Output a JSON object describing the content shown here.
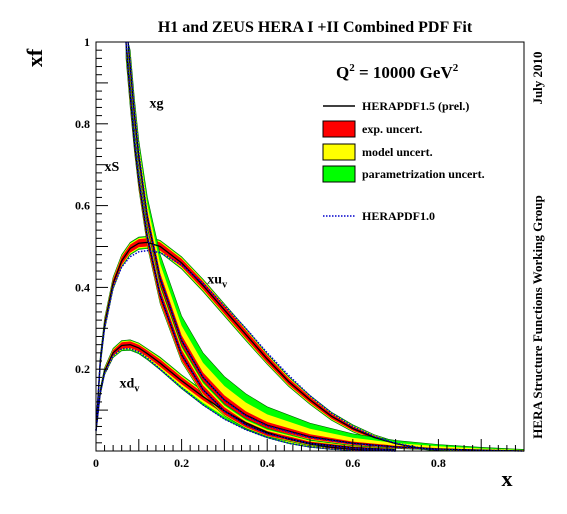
{
  "chart_data": {
    "type": "line",
    "title": "H1 and ZEUS HERA I +II Combined PDF Fit",
    "xlabel": "x",
    "ylabel": "xf",
    "xlim": [
      0,
      1
    ],
    "ylim": [
      0,
      1
    ],
    "x_ticks": [
      "0",
      "0.2",
      "0.4",
      "0.6",
      "0.8"
    ],
    "y_ticks": [
      "0.2",
      "0.4",
      "0.6",
      "0.8",
      "1"
    ],
    "annotation": {
      "base": "Q",
      "sup1": "2",
      "mid": " = 10000 GeV",
      "sup2": "2"
    },
    "side_labels": {
      "date": "July 2010",
      "group": "HERA Structure Functions Working Group"
    },
    "legend": [
      {
        "label": "HERAPDF1.5 (prel.)",
        "kind": "line",
        "color": "#000000"
      },
      {
        "label": "exp. uncert.",
        "kind": "box",
        "color": "#ff0000"
      },
      {
        "label": "model uncert.",
        "kind": "box",
        "color": "#ffff00"
      },
      {
        "label": "parametrization uncert.",
        "kind": "box",
        "color": "#00ff00"
      },
      {
        "label": "HERAPDF1.0",
        "kind": "dotted",
        "color": "#0000cc"
      }
    ],
    "series": [
      {
        "label": "xu",
        "sub": "v",
        "label_at": [
          0.26,
          0.41
        ],
        "x": [
          0.0,
          0.01,
          0.02,
          0.04,
          0.06,
          0.08,
          0.1,
          0.12,
          0.15,
          0.2,
          0.25,
          0.3,
          0.35,
          0.4,
          0.45,
          0.5,
          0.55,
          0.6,
          0.65,
          0.7,
          0.75,
          0.8
        ],
        "center": [
          0.05,
          0.22,
          0.31,
          0.41,
          0.465,
          0.495,
          0.508,
          0.51,
          0.5,
          0.46,
          0.405,
          0.345,
          0.285,
          0.225,
          0.17,
          0.125,
          0.085,
          0.055,
          0.033,
          0.018,
          0.008,
          0.002
        ],
        "exp_lo": [
          0.045,
          0.21,
          0.3,
          0.4,
          0.455,
          0.485,
          0.498,
          0.5,
          0.49,
          0.45,
          0.395,
          0.335,
          0.275,
          0.216,
          0.162,
          0.118,
          0.079,
          0.05,
          0.029,
          0.015,
          0.006,
          0.001
        ],
        "exp_hi": [
          0.055,
          0.23,
          0.32,
          0.42,
          0.475,
          0.505,
          0.518,
          0.52,
          0.51,
          0.47,
          0.415,
          0.355,
          0.295,
          0.234,
          0.178,
          0.132,
          0.091,
          0.06,
          0.037,
          0.021,
          0.01,
          0.003
        ],
        "tot_lo": [
          0.04,
          0.205,
          0.295,
          0.395,
          0.45,
          0.48,
          0.493,
          0.495,
          0.485,
          0.445,
          0.39,
          0.33,
          0.27,
          0.212,
          0.158,
          0.114,
          0.075,
          0.047,
          0.026,
          0.013,
          0.005,
          0.0
        ],
        "tot_hi": [
          0.06,
          0.235,
          0.325,
          0.425,
          0.48,
          0.51,
          0.523,
          0.525,
          0.515,
          0.475,
          0.42,
          0.36,
          0.3,
          0.238,
          0.182,
          0.136,
          0.095,
          0.064,
          0.04,
          0.023,
          0.012,
          0.004
        ],
        "ref_x": [
          0.0,
          0.01,
          0.02,
          0.04,
          0.06,
          0.08,
          0.1,
          0.12,
          0.15,
          0.2,
          0.25,
          0.3,
          0.35,
          0.4,
          0.45,
          0.5,
          0.55,
          0.6,
          0.65,
          0.7,
          0.75,
          0.8
        ],
        "ref": [
          0.05,
          0.22,
          0.3,
          0.4,
          0.45,
          0.475,
          0.487,
          0.49,
          0.485,
          0.455,
          0.41,
          0.355,
          0.3,
          0.24,
          0.185,
          0.135,
          0.093,
          0.06,
          0.036,
          0.019,
          0.009,
          0.003
        ]
      },
      {
        "label": "xd",
        "sub": "v",
        "label_at": [
          0.055,
          0.155
        ],
        "x": [
          0.0,
          0.01,
          0.02,
          0.04,
          0.06,
          0.08,
          0.1,
          0.12,
          0.15,
          0.2,
          0.25,
          0.3,
          0.35,
          0.4,
          0.45,
          0.5,
          0.55,
          0.6,
          0.65,
          0.7
        ],
        "center": [
          0.05,
          0.145,
          0.195,
          0.24,
          0.258,
          0.26,
          0.252,
          0.238,
          0.215,
          0.172,
          0.133,
          0.098,
          0.069,
          0.046,
          0.029,
          0.017,
          0.009,
          0.004,
          0.002,
          0.0
        ],
        "exp_lo": [
          0.045,
          0.14,
          0.19,
          0.233,
          0.25,
          0.252,
          0.244,
          0.23,
          0.206,
          0.163,
          0.124,
          0.09,
          0.062,
          0.04,
          0.024,
          0.013,
          0.006,
          0.002,
          0.0,
          0.0
        ],
        "exp_hi": [
          0.055,
          0.15,
          0.2,
          0.247,
          0.266,
          0.268,
          0.26,
          0.246,
          0.224,
          0.181,
          0.142,
          0.106,
          0.076,
          0.052,
          0.034,
          0.021,
          0.012,
          0.006,
          0.003,
          0.001
        ],
        "tot_lo": [
          0.042,
          0.136,
          0.186,
          0.228,
          0.245,
          0.246,
          0.238,
          0.223,
          0.198,
          0.152,
          0.112,
          0.078,
          0.052,
          0.032,
          0.018,
          0.009,
          0.004,
          0.001,
          0.0,
          0.0
        ],
        "tot_hi": [
          0.058,
          0.154,
          0.204,
          0.251,
          0.27,
          0.272,
          0.264,
          0.25,
          0.229,
          0.186,
          0.148,
          0.112,
          0.082,
          0.057,
          0.038,
          0.024,
          0.014,
          0.007,
          0.004,
          0.002
        ],
        "ref_x": [
          0.0,
          0.01,
          0.02,
          0.04,
          0.06,
          0.08,
          0.1,
          0.12,
          0.15,
          0.2,
          0.25,
          0.3,
          0.35,
          0.4,
          0.45,
          0.5,
          0.55,
          0.6,
          0.65,
          0.7
        ],
        "ref": [
          0.05,
          0.142,
          0.19,
          0.233,
          0.25,
          0.25,
          0.242,
          0.227,
          0.2,
          0.155,
          0.113,
          0.078,
          0.052,
          0.033,
          0.019,
          0.01,
          0.005,
          0.002,
          0.001,
          0.0
        ]
      },
      {
        "label": "xg",
        "sub": "",
        "label_at": [
          0.125,
          0.84
        ],
        "x": [
          0.075,
          0.08,
          0.09,
          0.1,
          0.12,
          0.15,
          0.2,
          0.25,
          0.3,
          0.35,
          0.4,
          0.5,
          0.6,
          0.7,
          0.8,
          0.9,
          1.0
        ],
        "center": [
          1.0,
          0.94,
          0.82,
          0.72,
          0.57,
          0.42,
          0.27,
          0.18,
          0.125,
          0.088,
          0.063,
          0.035,
          0.019,
          0.01,
          0.005,
          0.002,
          0.0
        ],
        "exp_lo": [
          0.98,
          0.92,
          0.8,
          0.705,
          0.555,
          0.405,
          0.257,
          0.168,
          0.114,
          0.079,
          0.055,
          0.029,
          0.015,
          0.007,
          0.003,
          0.001,
          0.0
        ],
        "exp_hi": [
          1.0,
          0.96,
          0.84,
          0.735,
          0.585,
          0.435,
          0.283,
          0.192,
          0.136,
          0.097,
          0.071,
          0.041,
          0.023,
          0.013,
          0.007,
          0.003,
          0.001
        ],
        "tot_lo": [
          0.96,
          0.9,
          0.79,
          0.7,
          0.55,
          0.4,
          0.252,
          0.164,
          0.11,
          0.075,
          0.052,
          0.026,
          0.013,
          0.006,
          0.002,
          0.0,
          0.0
        ],
        "tot_hi": [
          1.0,
          0.98,
          0.86,
          0.76,
          0.62,
          0.48,
          0.33,
          0.24,
          0.182,
          0.14,
          0.108,
          0.068,
          0.042,
          0.026,
          0.016,
          0.009,
          0.004
        ],
        "ref_x": [
          0.075,
          0.08,
          0.09,
          0.1,
          0.12,
          0.15,
          0.2,
          0.25,
          0.3,
          0.35,
          0.4,
          0.5,
          0.6,
          0.7,
          0.8,
          0.9,
          1.0
        ],
        "ref": [
          1.0,
          0.95,
          0.83,
          0.73,
          0.575,
          0.425,
          0.272,
          0.18,
          0.124,
          0.086,
          0.061,
          0.033,
          0.018,
          0.009,
          0.004,
          0.002,
          0.0
        ]
      },
      {
        "label": "xS",
        "sub": "",
        "label_at": [
          0.02,
          0.685
        ],
        "x": [
          0.07,
          0.075,
          0.08,
          0.09,
          0.1,
          0.12,
          0.15,
          0.2,
          0.25,
          0.3,
          0.35,
          0.4,
          0.5,
          0.6,
          0.7
        ],
        "center": [
          1.0,
          0.93,
          0.87,
          0.75,
          0.66,
          0.52,
          0.38,
          0.235,
          0.15,
          0.098,
          0.065,
          0.043,
          0.019,
          0.008,
          0.003
        ],
        "exp_lo": [
          0.98,
          0.91,
          0.85,
          0.735,
          0.645,
          0.505,
          0.365,
          0.222,
          0.139,
          0.089,
          0.058,
          0.037,
          0.015,
          0.005,
          0.001
        ],
        "exp_hi": [
          1.0,
          0.95,
          0.89,
          0.765,
          0.675,
          0.535,
          0.395,
          0.248,
          0.161,
          0.107,
          0.072,
          0.049,
          0.023,
          0.011,
          0.005
        ],
        "tot_lo": [
          0.96,
          0.9,
          0.84,
          0.73,
          0.64,
          0.5,
          0.36,
          0.218,
          0.135,
          0.086,
          0.055,
          0.035,
          0.013,
          0.004,
          0.0
        ],
        "tot_hi": [
          1.0,
          0.96,
          0.9,
          0.775,
          0.685,
          0.545,
          0.405,
          0.258,
          0.17,
          0.115,
          0.079,
          0.055,
          0.027,
          0.013,
          0.006
        ],
        "ref_x": [
          0.07,
          0.075,
          0.08,
          0.09,
          0.1,
          0.12,
          0.15,
          0.2,
          0.25,
          0.3,
          0.35,
          0.4,
          0.5,
          0.6,
          0.7
        ],
        "ref": [
          1.0,
          0.94,
          0.88,
          0.76,
          0.668,
          0.525,
          0.383,
          0.236,
          0.15,
          0.097,
          0.064,
          0.042,
          0.018,
          0.007,
          0.002
        ]
      }
    ]
  }
}
